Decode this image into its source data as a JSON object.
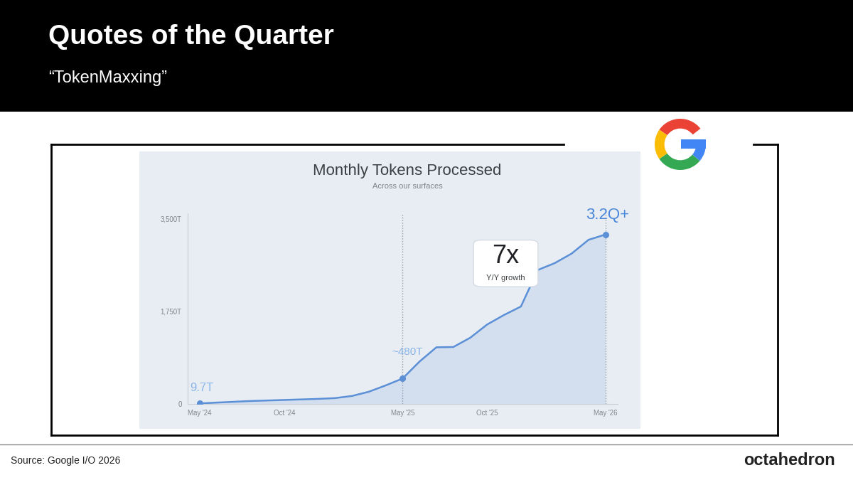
{
  "header": {
    "title": "Quotes of the Quarter",
    "subtitle": "“TokenMaxxing”"
  },
  "footer": {
    "source": "Source: Google I/O 2026",
    "brand": "octahedron"
  },
  "chart_data": {
    "type": "line",
    "title": "Monthly Tokens Processed",
    "subtitle": "Across our surfaces",
    "categories": [
      "May '24",
      null,
      null,
      null,
      null,
      "Oct '24",
      null,
      null,
      null,
      null,
      null,
      null,
      "May '25",
      null,
      null,
      null,
      null,
      "Oct '25",
      null,
      null,
      null,
      null,
      null,
      null,
      "May '26"
    ],
    "values": [
      9.7,
      25,
      40,
      55,
      65,
      75,
      85,
      95,
      110,
      150,
      230,
      350,
      480,
      800,
      1070,
      1075,
      1250,
      1500,
      1680,
      1840,
      2530,
      2660,
      2840,
      3100,
      3200
    ],
    "value_labels": [
      "9.7T",
      null,
      null,
      null,
      null,
      null,
      null,
      null,
      null,
      null,
      null,
      null,
      "~480T",
      null,
      null,
      null,
      null,
      null,
      null,
      null,
      null,
      null,
      null,
      null,
      "3.2Q+"
    ],
    "color": "#5b8fd6",
    "ylim": [
      0,
      3600
    ],
    "yticks": [
      0,
      {
        "value": 1750,
        "label": "1,750T"
      },
      {
        "value": 3500,
        "label": "3,500T"
      }
    ],
    "grid": false,
    "annotations": [
      {
        "text": "7x"
      },
      {
        "text": "Y/Y growth"
      }
    ]
  }
}
